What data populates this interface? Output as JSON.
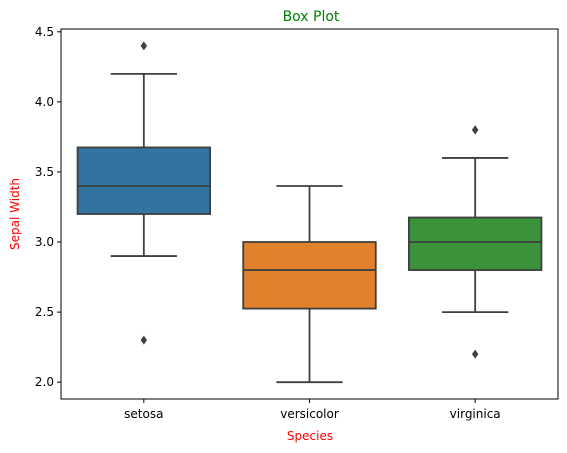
{
  "chart_data": {
    "type": "box",
    "title": "Box Plot",
    "title_color": "#008000",
    "xlabel": "Species",
    "ylabel": "Sepal Width",
    "label_color": "#ff0000",
    "ylim": [
      1.88,
      4.52
    ],
    "yticks": [
      2.0,
      2.5,
      3.0,
      3.5,
      4.0,
      4.5
    ],
    "ytick_labels": [
      "2.0",
      "2.5",
      "3.0",
      "3.5",
      "4.0",
      "4.5"
    ],
    "grid": false,
    "categories": [
      "setosa",
      "versicolor",
      "virginica"
    ],
    "series": [
      {
        "category": "setosa",
        "color": "#3274a1",
        "whisker_low": 2.9,
        "q1": 3.2,
        "median": 3.4,
        "q3": 3.675,
        "whisker_high": 4.2,
        "outliers": [
          2.3,
          4.4
        ]
      },
      {
        "category": "versicolor",
        "color": "#e1812c",
        "whisker_low": 2.0,
        "q1": 2.525,
        "median": 2.8,
        "q3": 3.0,
        "whisker_high": 3.4,
        "outliers": []
      },
      {
        "category": "virginica",
        "color": "#3a923a",
        "whisker_low": 2.5,
        "q1": 2.8,
        "median": 3.0,
        "q3": 3.175,
        "whisker_high": 3.6,
        "outliers": [
          2.2,
          3.8,
          3.8
        ]
      }
    ]
  }
}
